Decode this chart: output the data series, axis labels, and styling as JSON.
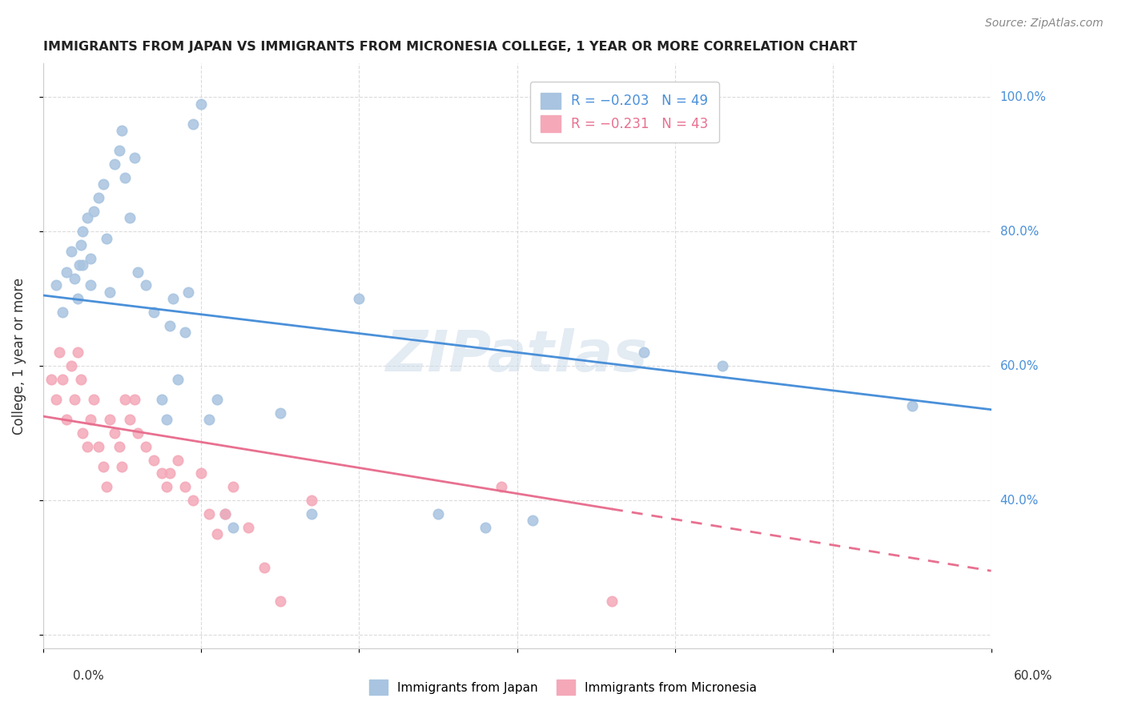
{
  "title": "IMMIGRANTS FROM JAPAN VS IMMIGRANTS FROM MICRONESIA COLLEGE, 1 YEAR OR MORE CORRELATION CHART",
  "source": "Source: ZipAtlas.com",
  "ylabel": "College, 1 year or more",
  "xmin": 0.0,
  "xmax": 0.6,
  "ymin": 0.18,
  "ymax": 1.05,
  "legend_japan_R": "-0.203",
  "legend_japan_N": "49",
  "legend_micronesia_R": "-0.231",
  "legend_micronesia_N": "43",
  "watermark": "ZIPatlas",
  "japan_color": "#a8c4e0",
  "micronesia_color": "#f4a8b8",
  "japan_line_color": "#4a90d9",
  "micronesia_line_color": "#e87090",
  "japan_scatter_x": [
    0.008,
    0.012,
    0.015,
    0.018,
    0.02,
    0.022,
    0.023,
    0.024,
    0.025,
    0.025,
    0.028,
    0.03,
    0.03,
    0.032,
    0.035,
    0.038,
    0.04,
    0.042,
    0.045,
    0.048,
    0.05,
    0.052,
    0.055,
    0.058,
    0.06,
    0.065,
    0.07,
    0.075,
    0.078,
    0.08,
    0.082,
    0.085,
    0.09,
    0.092,
    0.095,
    0.1,
    0.105,
    0.11,
    0.115,
    0.12,
    0.15,
    0.17,
    0.2,
    0.25,
    0.28,
    0.31,
    0.38,
    0.43,
    0.55
  ],
  "japan_scatter_y": [
    0.72,
    0.68,
    0.74,
    0.77,
    0.73,
    0.7,
    0.75,
    0.78,
    0.75,
    0.8,
    0.82,
    0.76,
    0.72,
    0.83,
    0.85,
    0.87,
    0.79,
    0.71,
    0.9,
    0.92,
    0.95,
    0.88,
    0.82,
    0.91,
    0.74,
    0.72,
    0.68,
    0.55,
    0.52,
    0.66,
    0.7,
    0.58,
    0.65,
    0.71,
    0.96,
    0.99,
    0.52,
    0.55,
    0.38,
    0.36,
    0.53,
    0.38,
    0.7,
    0.38,
    0.36,
    0.37,
    0.62,
    0.6,
    0.54
  ],
  "micronesia_scatter_x": [
    0.005,
    0.008,
    0.01,
    0.012,
    0.015,
    0.018,
    0.02,
    0.022,
    0.024,
    0.025,
    0.028,
    0.03,
    0.032,
    0.035,
    0.038,
    0.04,
    0.042,
    0.045,
    0.048,
    0.05,
    0.052,
    0.055,
    0.058,
    0.06,
    0.065,
    0.07,
    0.075,
    0.078,
    0.08,
    0.085,
    0.09,
    0.095,
    0.1,
    0.105,
    0.11,
    0.115,
    0.12,
    0.13,
    0.14,
    0.15,
    0.17,
    0.29,
    0.36
  ],
  "micronesia_scatter_y": [
    0.58,
    0.55,
    0.62,
    0.58,
    0.52,
    0.6,
    0.55,
    0.62,
    0.58,
    0.5,
    0.48,
    0.52,
    0.55,
    0.48,
    0.45,
    0.42,
    0.52,
    0.5,
    0.48,
    0.45,
    0.55,
    0.52,
    0.55,
    0.5,
    0.48,
    0.46,
    0.44,
    0.42,
    0.44,
    0.46,
    0.42,
    0.4,
    0.44,
    0.38,
    0.35,
    0.38,
    0.42,
    0.36,
    0.3,
    0.25,
    0.4,
    0.42,
    0.25
  ],
  "japan_trend_x": [
    0.0,
    0.6
  ],
  "japan_trend_y": [
    0.705,
    0.535
  ],
  "micronesia_trend_x": [
    0.0,
    0.6
  ],
  "micronesia_trend_y": [
    0.525,
    0.295
  ],
  "micronesia_trend_solid_end": 0.36,
  "ytick_positions": [
    0.2,
    0.4,
    0.6,
    0.8,
    1.0
  ],
  "ytick_labels_right": [
    "",
    "40.0%",
    "60.0%",
    "80.0%",
    "100.0%"
  ],
  "xtick_positions": [
    0.0,
    0.1,
    0.2,
    0.3,
    0.4,
    0.5,
    0.6
  ]
}
